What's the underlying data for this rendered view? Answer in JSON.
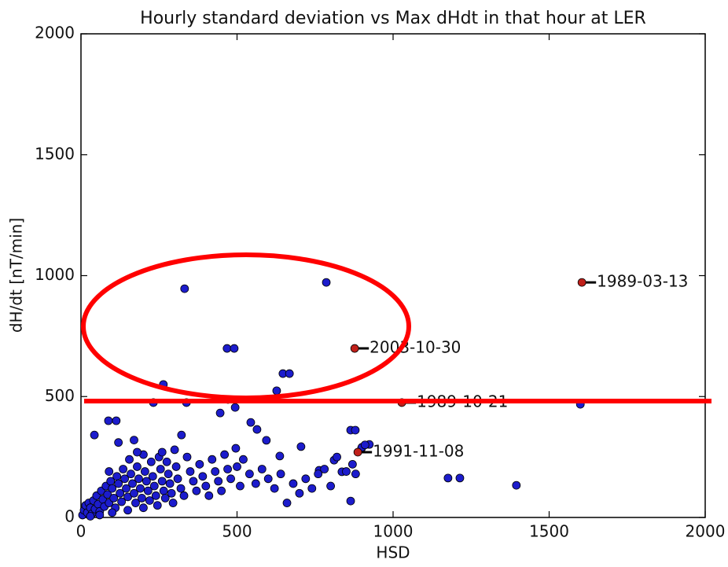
{
  "chart_data": {
    "type": "scatter",
    "title": "Hourly standard deviation vs Max dHdt in that hour at LER",
    "xlabel": "HSD",
    "ylabel": "dH/dt [nT/min]",
    "xlim": [
      0,
      2000
    ],
    "ylim": [
      0,
      2000
    ],
    "xticks": [
      0,
      500,
      1000,
      1500,
      2000
    ],
    "yticks": [
      0,
      500,
      1000,
      1500,
      2000
    ],
    "color": "#1c1ccc",
    "x": [
      332,
      786,
      468,
      491,
      647,
      668,
      627,
      264,
      1600,
      1176,
      1214,
      1395,
      864,
      232,
      338,
      471,
      446,
      494,
      88,
      113,
      43,
      322,
      544,
      564,
      864,
      879,
      924,
      899,
      811,
      763,
      836,
      705,
      637,
      594,
      496,
      5,
      10,
      15,
      20,
      25,
      30,
      35,
      40,
      45,
      50,
      55,
      60,
      65,
      70,
      75,
      80,
      85,
      90,
      95,
      100,
      105,
      110,
      115,
      120,
      125,
      130,
      135,
      140,
      145,
      150,
      155,
      160,
      165,
      170,
      175,
      180,
      185,
      190,
      195,
      200,
      205,
      210,
      215,
      220,
      225,
      230,
      235,
      240,
      245,
      250,
      255,
      260,
      265,
      270,
      275,
      280,
      285,
      290,
      295,
      300,
      305,
      310,
      320,
      330,
      340,
      350,
      360,
      370,
      380,
      390,
      400,
      410,
      420,
      430,
      440,
      450,
      460,
      470,
      480,
      500,
      510,
      520,
      540,
      560,
      580,
      600,
      620,
      640,
      660,
      680,
      700,
      720,
      740,
      760,
      780,
      800,
      820,
      850,
      870,
      880,
      900,
      910,
      30,
      60,
      100,
      150,
      200,
      90,
      120,
      170,
      260,
      180
    ],
    "y": [
      946,
      972,
      699,
      699,
      595,
      595,
      524,
      550,
      468,
      163,
      163,
      133,
      68,
      475,
      475,
      488,
      432,
      455,
      400,
      400,
      341,
      341,
      393,
      364,
      361,
      361,
      302,
      286,
      237,
      195,
      189,
      293,
      254,
      319,
      286,
      10,
      30,
      50,
      20,
      60,
      40,
      15,
      70,
      35,
      90,
      55,
      25,
      110,
      75,
      45,
      130,
      95,
      60,
      150,
      120,
      80,
      40,
      170,
      140,
      100,
      65,
      200,
      160,
      120,
      85,
      240,
      180,
      140,
      100,
      60,
      210,
      160,
      120,
      80,
      260,
      190,
      150,
      110,
      70,
      230,
      170,
      130,
      90,
      50,
      250,
      200,
      150,
      110,
      80,
      230,
      180,
      140,
      100,
      60,
      280,
      210,
      160,
      120,
      90,
      250,
      190,
      150,
      110,
      220,
      170,
      130,
      90,
      240,
      190,
      150,
      110,
      260,
      200,
      160,
      210,
      130,
      240,
      180,
      140,
      200,
      160,
      120,
      180,
      60,
      140,
      100,
      160,
      120,
      180,
      200,
      130,
      250,
      190,
      220,
      180,
      290,
      300,
      5,
      10,
      20,
      30,
      40,
      190,
      310,
      320,
      270,
      270
    ],
    "highlights": {
      "color": "#c0201a",
      "x": [
        1605,
        877,
        1028,
        887
      ],
      "y": [
        972,
        699,
        475,
        270
      ],
      "labels": [
        "1989-03-13",
        "2003-10-30",
        "1989-10-21",
        "1991-11-08"
      ]
    }
  }
}
